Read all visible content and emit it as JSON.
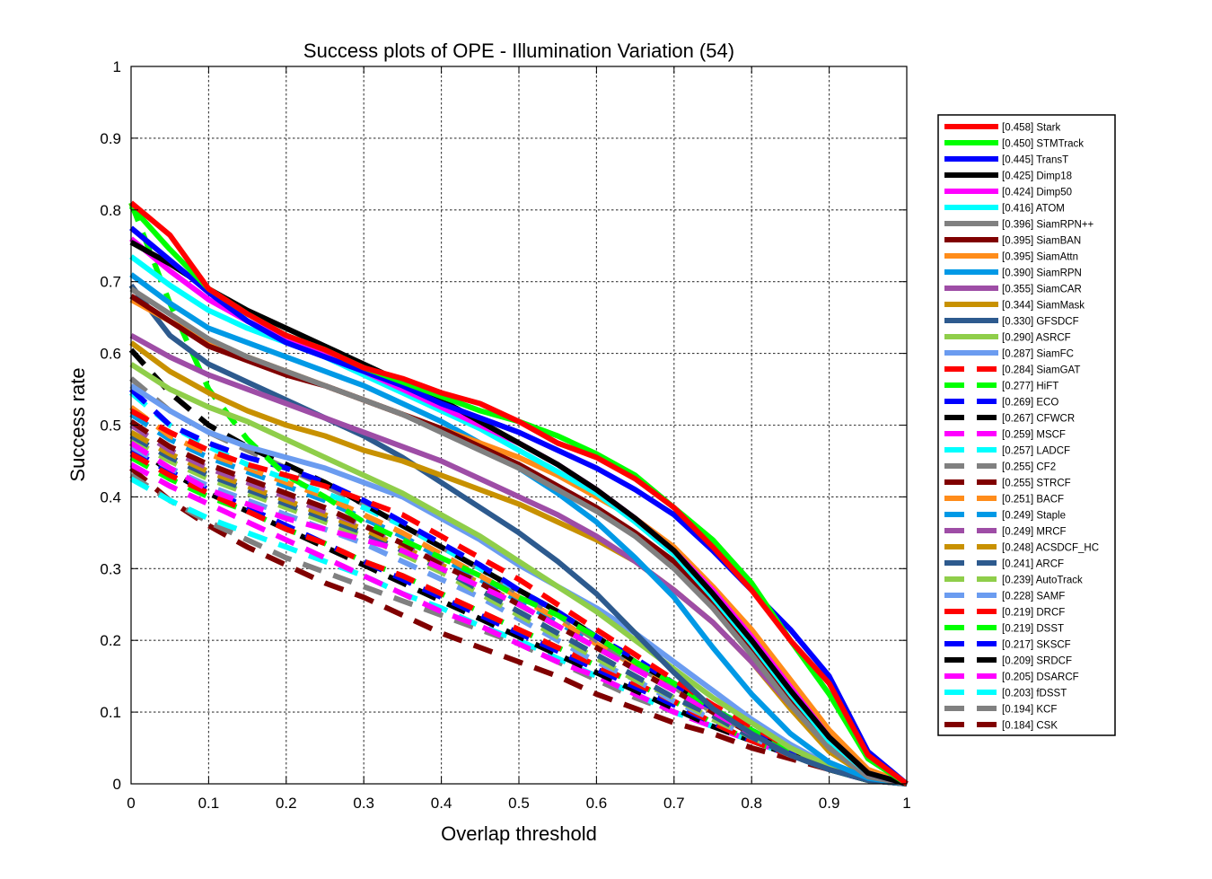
{
  "chart_data": {
    "type": "line",
    "title": "Success plots of OPE - Illumination Variation (54)",
    "xlabel": "Overlap threshold",
    "ylabel": "Success rate",
    "xlim": [
      0,
      1
    ],
    "ylim": [
      0,
      1
    ],
    "grid": true,
    "legend_position": "outside-right",
    "x_ticks": [
      "0",
      "0.1",
      "0.2",
      "0.3",
      "0.4",
      "0.5",
      "0.6",
      "0.7",
      "0.8",
      "0.9",
      "1"
    ],
    "y_ticks": [
      "0",
      "0.1",
      "0.2",
      "0.3",
      "0.4",
      "0.5",
      "0.6",
      "0.7",
      "0.8",
      "0.9",
      "1"
    ],
    "x": [
      0,
      0.05,
      0.1,
      0.15,
      0.2,
      0.25,
      0.3,
      0.35,
      0.4,
      0.45,
      0.5,
      0.55,
      0.6,
      0.65,
      0.7,
      0.75,
      0.8,
      0.85,
      0.9,
      0.95,
      1.0
    ],
    "series": [
      {
        "name": "[0.458] Stark",
        "color": "#ff0000",
        "dash": false,
        "values": [
          0.81,
          0.765,
          0.69,
          0.655,
          0.625,
          0.605,
          0.58,
          0.565,
          0.545,
          0.53,
          0.505,
          0.475,
          0.455,
          0.425,
          0.385,
          0.33,
          0.27,
          0.2,
          0.14,
          0.04,
          0.0
        ]
      },
      {
        "name": "[0.450] STMTrack",
        "color": "#00ff00",
        "dash": false,
        "values": [
          0.805,
          0.745,
          0.69,
          0.655,
          0.625,
          0.605,
          0.58,
          0.56,
          0.54,
          0.52,
          0.505,
          0.485,
          0.46,
          0.43,
          0.385,
          0.34,
          0.28,
          0.2,
          0.125,
          0.035,
          0.0
        ]
      },
      {
        "name": "[0.445] TransT",
        "color": "#0000ff",
        "dash": false,
        "values": [
          0.775,
          0.73,
          0.685,
          0.645,
          0.615,
          0.595,
          0.575,
          0.555,
          0.53,
          0.51,
          0.49,
          0.465,
          0.44,
          0.41,
          0.375,
          0.325,
          0.27,
          0.215,
          0.15,
          0.045,
          0.0
        ]
      },
      {
        "name": "[0.425] Dimp18",
        "color": "#000000",
        "dash": false,
        "values": [
          0.755,
          0.725,
          0.69,
          0.66,
          0.635,
          0.61,
          0.585,
          0.56,
          0.535,
          0.505,
          0.475,
          0.445,
          0.41,
          0.37,
          0.325,
          0.265,
          0.2,
          0.13,
          0.065,
          0.015,
          0.0
        ]
      },
      {
        "name": "[0.424] Dimp50",
        "color": "#ff00ff",
        "dash": false,
        "values": [
          0.76,
          0.715,
          0.675,
          0.645,
          0.62,
          0.6,
          0.575,
          0.55,
          0.525,
          0.5,
          0.475,
          0.445,
          0.41,
          0.37,
          0.325,
          0.27,
          0.205,
          0.135,
          0.065,
          0.015,
          0.0
        ]
      },
      {
        "name": "[0.416] ATOM",
        "color": "#00ffff",
        "dash": false,
        "values": [
          0.735,
          0.695,
          0.66,
          0.635,
          0.615,
          0.595,
          0.57,
          0.545,
          0.52,
          0.495,
          0.465,
          0.435,
          0.405,
          0.365,
          0.32,
          0.26,
          0.195,
          0.125,
          0.06,
          0.015,
          0.0
        ]
      },
      {
        "name": "[0.396] SiamRPN++",
        "color": "#808080",
        "dash": false,
        "values": [
          0.69,
          0.655,
          0.62,
          0.595,
          0.575,
          0.555,
          0.535,
          0.515,
          0.49,
          0.465,
          0.44,
          0.41,
          0.38,
          0.345,
          0.3,
          0.245,
          0.18,
          0.11,
          0.05,
          0.01,
          0.0
        ]
      },
      {
        "name": "[0.395] SiamBAN",
        "color": "#800000",
        "dash": false,
        "values": [
          0.68,
          0.645,
          0.61,
          0.59,
          0.57,
          0.555,
          0.535,
          0.515,
          0.495,
          0.47,
          0.445,
          0.415,
          0.385,
          0.35,
          0.31,
          0.255,
          0.19,
          0.12,
          0.055,
          0.012,
          0.0
        ]
      },
      {
        "name": "[0.395] SiamAttn",
        "color": "#ff8c1a",
        "dash": false,
        "values": [
          0.675,
          0.645,
          0.615,
          0.595,
          0.575,
          0.555,
          0.535,
          0.515,
          0.495,
          0.475,
          0.455,
          0.43,
          0.4,
          0.37,
          0.33,
          0.275,
          0.215,
          0.145,
          0.075,
          0.02,
          0.0
        ]
      },
      {
        "name": "[0.390] SiamRPN",
        "color": "#0099e6",
        "dash": false,
        "values": [
          0.71,
          0.67,
          0.635,
          0.615,
          0.595,
          0.575,
          0.555,
          0.53,
          0.505,
          0.475,
          0.44,
          0.405,
          0.365,
          0.315,
          0.26,
          0.19,
          0.125,
          0.07,
          0.03,
          0.008,
          0.0
        ]
      },
      {
        "name": "[0.355] SiamCAR",
        "color": "#9e4da6",
        "dash": false,
        "values": [
          0.625,
          0.595,
          0.57,
          0.55,
          0.53,
          0.51,
          0.49,
          0.47,
          0.45,
          0.425,
          0.4,
          0.375,
          0.345,
          0.31,
          0.27,
          0.225,
          0.17,
          0.11,
          0.055,
          0.012,
          0.0
        ]
      },
      {
        "name": "[0.344] SiamMask",
        "color": "#c89100",
        "dash": false,
        "values": [
          0.615,
          0.575,
          0.545,
          0.52,
          0.5,
          0.485,
          0.465,
          0.45,
          0.43,
          0.41,
          0.39,
          0.365,
          0.34,
          0.31,
          0.27,
          0.225,
          0.17,
          0.105,
          0.045,
          0.01,
          0.0
        ]
      },
      {
        "name": "[0.330] GFSDCF",
        "color": "#2d5a8e",
        "dash": false,
        "values": [
          0.695,
          0.625,
          0.585,
          0.56,
          0.535,
          0.51,
          0.485,
          0.455,
          0.42,
          0.385,
          0.35,
          0.31,
          0.265,
          0.21,
          0.155,
          0.105,
          0.07,
          0.04,
          0.02,
          0.005,
          0.0
        ]
      },
      {
        "name": "[0.290] ASRCF",
        "color": "#8fce4a",
        "dash": false,
        "values": [
          0.585,
          0.55,
          0.525,
          0.505,
          0.48,
          0.455,
          0.43,
          0.405,
          0.375,
          0.345,
          0.31,
          0.275,
          0.24,
          0.2,
          0.16,
          0.12,
          0.085,
          0.05,
          0.025,
          0.005,
          0.0
        ]
      },
      {
        "name": "[0.287] SiamFC",
        "color": "#6b9cf0",
        "dash": false,
        "values": [
          0.555,
          0.52,
          0.49,
          0.47,
          0.455,
          0.44,
          0.42,
          0.4,
          0.37,
          0.34,
          0.305,
          0.275,
          0.245,
          0.21,
          0.17,
          0.13,
          0.09,
          0.055,
          0.025,
          0.005,
          0.0
        ]
      },
      {
        "name": "[0.284] SiamGAT",
        "color": "#ff0000",
        "dash": true,
        "values": [
          0.52,
          0.49,
          0.465,
          0.445,
          0.43,
          0.415,
          0.395,
          0.375,
          0.345,
          0.315,
          0.285,
          0.25,
          0.215,
          0.18,
          0.145,
          0.11,
          0.08,
          0.05,
          0.025,
          0.005,
          0.0
        ]
      },
      {
        "name": "[0.277] HiFT",
        "color": "#00ff00",
        "dash": true,
        "values": [
          0.81,
          0.67,
          0.55,
          0.48,
          0.43,
          0.4,
          0.365,
          0.34,
          0.315,
          0.29,
          0.26,
          0.235,
          0.205,
          0.17,
          0.14,
          0.105,
          0.075,
          0.045,
          0.02,
          0.005,
          0.0
        ]
      },
      {
        "name": "[0.269] ECO",
        "color": "#0000ff",
        "dash": true,
        "values": [
          0.55,
          0.5,
          0.475,
          0.455,
          0.44,
          0.42,
          0.395,
          0.365,
          0.335,
          0.305,
          0.27,
          0.24,
          0.205,
          0.175,
          0.14,
          0.105,
          0.075,
          0.045,
          0.02,
          0.005,
          0.0
        ]
      },
      {
        "name": "[0.267] CFWCR",
        "color": "#000000",
        "dash": true,
        "values": [
          0.605,
          0.545,
          0.5,
          0.47,
          0.445,
          0.42,
          0.39,
          0.36,
          0.33,
          0.3,
          0.27,
          0.24,
          0.205,
          0.17,
          0.14,
          0.105,
          0.075,
          0.045,
          0.02,
          0.005,
          0.0
        ]
      },
      {
        "name": "[0.259] MSCF",
        "color": "#ff00ff",
        "dash": true,
        "values": [
          0.475,
          0.44,
          0.41,
          0.39,
          0.37,
          0.355,
          0.34,
          0.325,
          0.3,
          0.275,
          0.25,
          0.22,
          0.19,
          0.16,
          0.13,
          0.1,
          0.07,
          0.045,
          0.02,
          0.005,
          0.0
        ]
      },
      {
        "name": "[0.257] LADCF",
        "color": "#00ffff",
        "dash": true,
        "values": [
          0.545,
          0.5,
          0.47,
          0.445,
          0.425,
          0.405,
          0.385,
          0.36,
          0.33,
          0.3,
          0.27,
          0.24,
          0.205,
          0.17,
          0.14,
          0.105,
          0.075,
          0.045,
          0.02,
          0.005,
          0.0
        ]
      },
      {
        "name": "[0.255] CF2",
        "color": "#808080",
        "dash": true,
        "values": [
          0.565,
          0.52,
          0.49,
          0.465,
          0.44,
          0.415,
          0.39,
          0.36,
          0.33,
          0.3,
          0.265,
          0.235,
          0.2,
          0.165,
          0.135,
          0.1,
          0.07,
          0.045,
          0.02,
          0.005,
          0.0
        ]
      },
      {
        "name": "[0.255] STRCF",
        "color": "#800000",
        "dash": true,
        "values": [
          0.505,
          0.47,
          0.445,
          0.425,
          0.405,
          0.385,
          0.36,
          0.335,
          0.305,
          0.28,
          0.25,
          0.22,
          0.19,
          0.16,
          0.13,
          0.1,
          0.07,
          0.045,
          0.02,
          0.005,
          0.0
        ]
      },
      {
        "name": "[0.251] BACF",
        "color": "#ff8c1a",
        "dash": true,
        "values": [
          0.525,
          0.485,
          0.46,
          0.44,
          0.42,
          0.4,
          0.375,
          0.35,
          0.32,
          0.29,
          0.26,
          0.23,
          0.195,
          0.165,
          0.135,
          0.1,
          0.07,
          0.045,
          0.02,
          0.005,
          0.0
        ]
      },
      {
        "name": "[0.249] Staple",
        "color": "#0099e6",
        "dash": true,
        "values": [
          0.515,
          0.48,
          0.455,
          0.435,
          0.415,
          0.395,
          0.37,
          0.345,
          0.315,
          0.285,
          0.255,
          0.225,
          0.195,
          0.165,
          0.135,
          0.1,
          0.07,
          0.045,
          0.02,
          0.005,
          0.0
        ]
      },
      {
        "name": "[0.249] MRCF",
        "color": "#9e4da6",
        "dash": true,
        "values": [
          0.5,
          0.465,
          0.44,
          0.42,
          0.4,
          0.38,
          0.36,
          0.335,
          0.31,
          0.28,
          0.25,
          0.22,
          0.19,
          0.16,
          0.13,
          0.1,
          0.07,
          0.045,
          0.02,
          0.005,
          0.0
        ]
      },
      {
        "name": "[0.248] ACSDCF_HC",
        "color": "#c89100",
        "dash": true,
        "values": [
          0.49,
          0.46,
          0.435,
          0.415,
          0.395,
          0.375,
          0.355,
          0.33,
          0.305,
          0.28,
          0.25,
          0.22,
          0.19,
          0.16,
          0.13,
          0.1,
          0.07,
          0.045,
          0.02,
          0.005,
          0.0
        ]
      },
      {
        "name": "[0.241] ARCF",
        "color": "#2d5a8e",
        "dash": true,
        "values": [
          0.485,
          0.455,
          0.43,
          0.41,
          0.39,
          0.37,
          0.35,
          0.325,
          0.3,
          0.27,
          0.24,
          0.21,
          0.18,
          0.15,
          0.12,
          0.095,
          0.065,
          0.04,
          0.02,
          0.005,
          0.0
        ]
      },
      {
        "name": "[0.239] AutoTrack",
        "color": "#8fce4a",
        "dash": true,
        "values": [
          0.48,
          0.45,
          0.425,
          0.405,
          0.385,
          0.365,
          0.345,
          0.32,
          0.295,
          0.265,
          0.235,
          0.205,
          0.175,
          0.145,
          0.12,
          0.09,
          0.065,
          0.04,
          0.02,
          0.005,
          0.0
        ]
      },
      {
        "name": "[0.228] SAMF",
        "color": "#6b9cf0",
        "dash": true,
        "values": [
          0.47,
          0.44,
          0.415,
          0.395,
          0.375,
          0.355,
          0.335,
          0.31,
          0.285,
          0.26,
          0.23,
          0.2,
          0.17,
          0.145,
          0.115,
          0.09,
          0.065,
          0.04,
          0.02,
          0.005,
          0.0
        ]
      },
      {
        "name": "[0.219] DRCF",
        "color": "#ff0000",
        "dash": true,
        "values": [
          0.46,
          0.43,
          0.405,
          0.38,
          0.355,
          0.335,
          0.31,
          0.29,
          0.265,
          0.24,
          0.215,
          0.19,
          0.165,
          0.14,
          0.115,
          0.085,
          0.06,
          0.04,
          0.02,
          0.005,
          0.0
        ]
      },
      {
        "name": "[0.219] DSST",
        "color": "#00ff00",
        "dash": true,
        "values": [
          0.455,
          0.425,
          0.4,
          0.38,
          0.355,
          0.335,
          0.31,
          0.29,
          0.265,
          0.24,
          0.215,
          0.19,
          0.165,
          0.14,
          0.115,
          0.085,
          0.06,
          0.04,
          0.02,
          0.005,
          0.0
        ]
      },
      {
        "name": "[0.217] SKSCF",
        "color": "#0000ff",
        "dash": true,
        "values": [
          0.465,
          0.435,
          0.41,
          0.385,
          0.36,
          0.335,
          0.31,
          0.285,
          0.26,
          0.235,
          0.21,
          0.185,
          0.16,
          0.135,
          0.11,
          0.085,
          0.06,
          0.04,
          0.02,
          0.005,
          0.0
        ]
      },
      {
        "name": "[0.209] SRDCF",
        "color": "#000000",
        "dash": true,
        "values": [
          0.475,
          0.435,
          0.405,
          0.38,
          0.355,
          0.33,
          0.305,
          0.28,
          0.255,
          0.23,
          0.205,
          0.18,
          0.155,
          0.13,
          0.105,
          0.08,
          0.06,
          0.04,
          0.02,
          0.005,
          0.0
        ]
      },
      {
        "name": "[0.205] DSARCF",
        "color": "#ff00ff",
        "dash": true,
        "values": [
          0.445,
          0.415,
          0.39,
          0.365,
          0.34,
          0.315,
          0.29,
          0.265,
          0.24,
          0.22,
          0.195,
          0.17,
          0.15,
          0.125,
          0.1,
          0.08,
          0.06,
          0.04,
          0.02,
          0.005,
          0.0
        ]
      },
      {
        "name": "[0.203] fDSST",
        "color": "#00ffff",
        "dash": true,
        "values": [
          0.425,
          0.395,
          0.37,
          0.35,
          0.33,
          0.31,
          0.29,
          0.265,
          0.245,
          0.22,
          0.2,
          0.175,
          0.15,
          0.125,
          0.1,
          0.08,
          0.06,
          0.04,
          0.02,
          0.005,
          0.0
        ]
      },
      {
        "name": "[0.194] KCF",
        "color": "#808080",
        "dash": true,
        "values": [
          0.43,
          0.395,
          0.365,
          0.34,
          0.315,
          0.295,
          0.275,
          0.255,
          0.235,
          0.215,
          0.195,
          0.17,
          0.145,
          0.12,
          0.1,
          0.08,
          0.06,
          0.04,
          0.02,
          0.005,
          0.0
        ]
      },
      {
        "name": "[0.184] CSK",
        "color": "#800000",
        "dash": true,
        "values": [
          0.44,
          0.395,
          0.36,
          0.33,
          0.305,
          0.28,
          0.26,
          0.235,
          0.21,
          0.19,
          0.17,
          0.15,
          0.125,
          0.105,
          0.085,
          0.07,
          0.05,
          0.035,
          0.02,
          0.005,
          0.0
        ]
      }
    ]
  }
}
